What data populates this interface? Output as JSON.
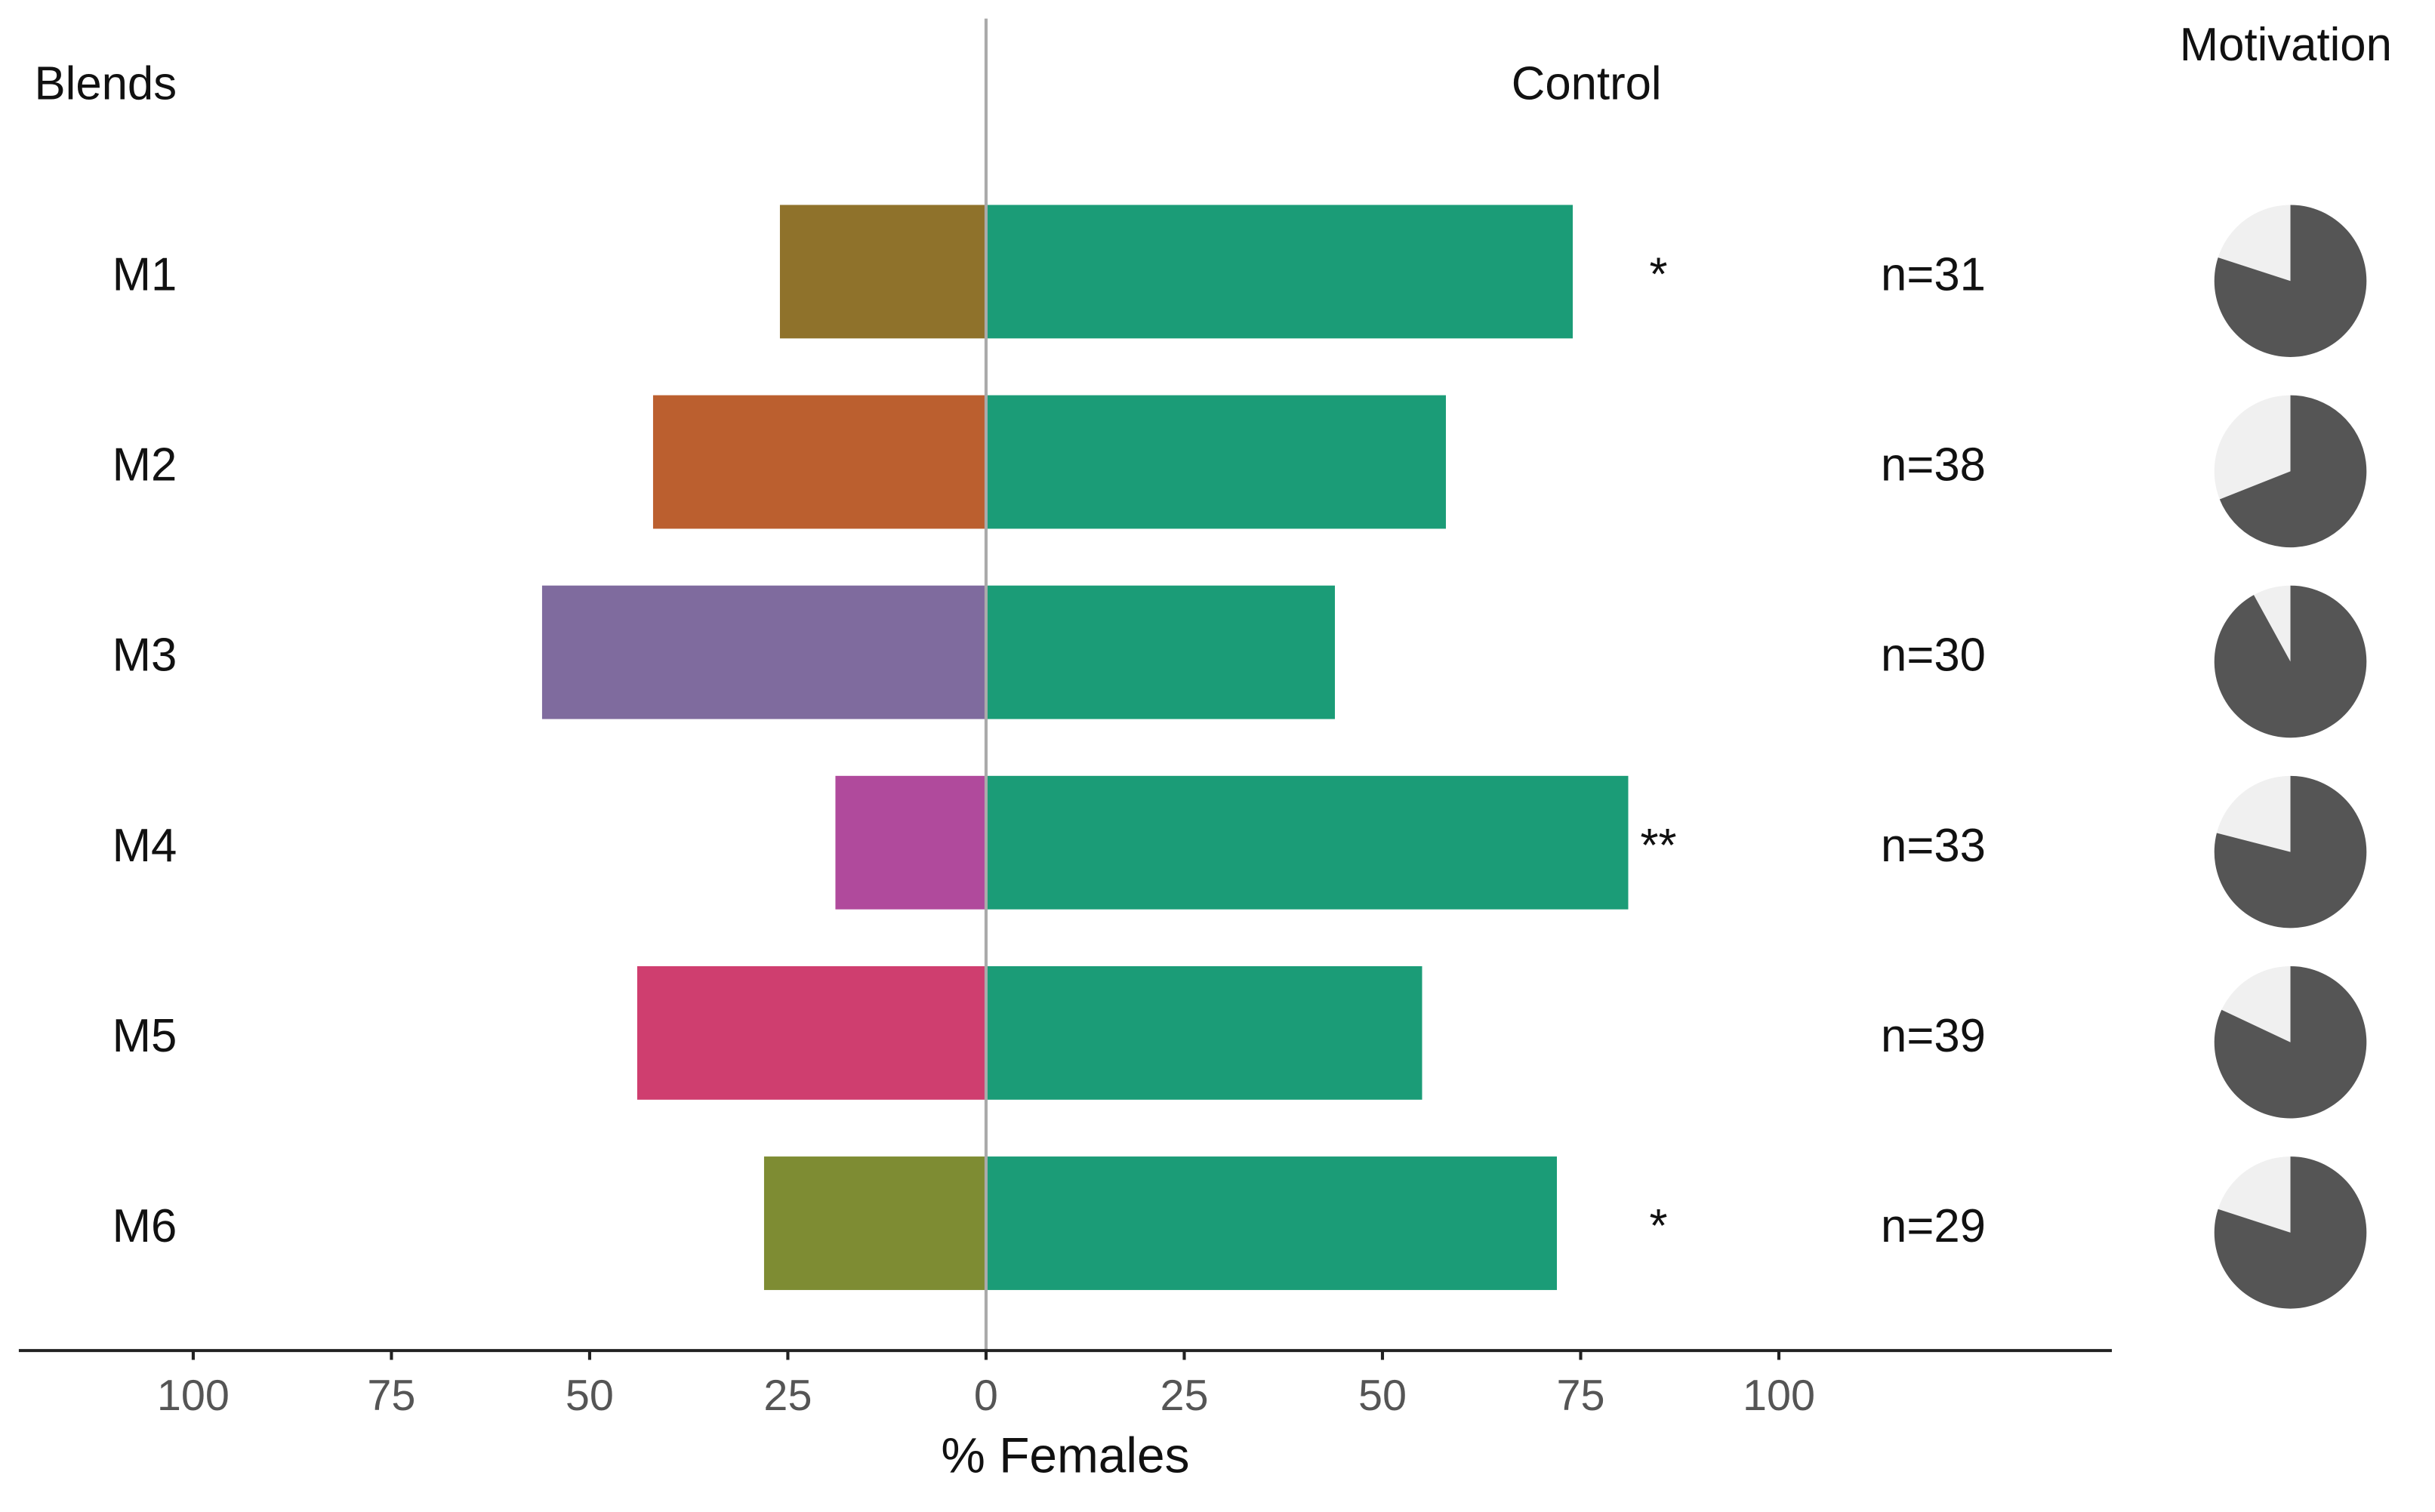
{
  "chart_data": {
    "type": "diverging-bar",
    "categories": [
      "M1",
      "M2",
      "M3",
      "M4",
      "M5",
      "M6"
    ],
    "series": [
      {
        "name": "Blends",
        "colors": [
          "#8f722b",
          "#bb5f2f",
          "#7f6b9e",
          "#b04a9c",
          "#cf3e6f",
          "#7e8c33"
        ],
        "values": [
          -26,
          -42,
          -56,
          -19,
          -44,
          -28
        ]
      },
      {
        "name": "Control",
        "color": "#1b9c77",
        "values": [
          74,
          58,
          44,
          81,
          55,
          72
        ]
      }
    ],
    "annotations": [
      "*",
      null,
      null,
      "**",
      null,
      "*"
    ],
    "n_labels": [
      "n=31",
      "n=38",
      "n=30",
      "n=33",
      "n=39",
      "n=29"
    ],
    "motivation": {
      "title": "Motivation",
      "values": [
        80,
        69,
        92,
        79,
        82,
        80
      ],
      "color": "#555555",
      "background": "#f0f0f0"
    },
    "xlabel": "% Females",
    "xlim": [
      -122,
      142
    ],
    "xticks": [
      {
        "value": -100,
        "label": "100"
      },
      {
        "value": -75,
        "label": "75"
      },
      {
        "value": -50,
        "label": "50"
      },
      {
        "value": -25,
        "label": "25"
      },
      0,
      25,
      50,
      75,
      100
    ]
  }
}
